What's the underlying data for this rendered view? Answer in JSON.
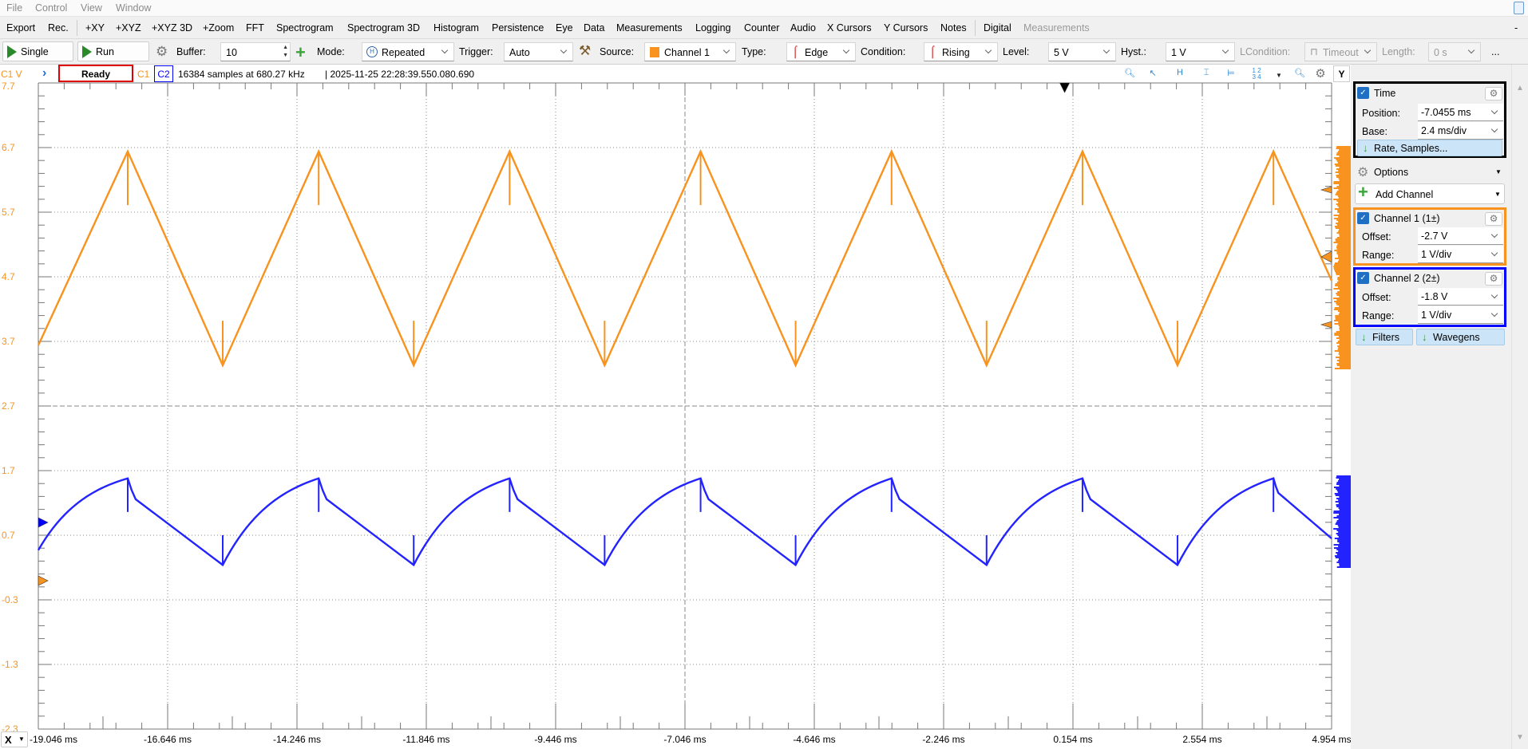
{
  "menu": [
    "File",
    "Control",
    "View",
    "Window"
  ],
  "views": [
    "Export",
    "Rec.",
    "+XY",
    "+XYZ",
    "+XYZ 3D",
    "+Zoom",
    "FFT",
    "Spectrogram",
    "Spectrogram 3D",
    "Histogram",
    "Persistence",
    "Eye",
    "Data",
    "Measurements",
    "Logging",
    "Counter",
    "Audio",
    "X Cursors",
    "Y Cursors",
    "Notes",
    "Digital",
    "Measurements"
  ],
  "minimize": "-",
  "toolbar": {
    "single": "Single",
    "run": "Run",
    "buffer_label": "Buffer:",
    "buffer": "10",
    "mode_label": "Mode:",
    "mode": "Repeated",
    "trigger_label": "Trigger:",
    "trigger": "Auto",
    "source_label": "Source:",
    "source": "Channel 1",
    "type_label": "Type:",
    "type": "Edge",
    "condition_label": "Condition:",
    "condition": "Rising",
    "level_label": "Level:",
    "level": "5 V",
    "hyst_label": "Hyst.:",
    "hyst": "1 V",
    "lcondition_label": "LCondition:",
    "lcondition": "Timeout",
    "length_label": "Length:",
    "length": "0 s",
    "more": "..."
  },
  "status": {
    "axis_unit": "C1 V",
    "state": "Ready",
    "c1": "C1",
    "c2": "C2",
    "info": "16384 samples at 680.27 kHz",
    "timestamp": "| 2025-11-25 22:28:39.550.080.690",
    "y_button": "Y",
    "x_button": "X"
  },
  "colors": {
    "ch1": "#f7931e",
    "ch2": "#2323ff",
    "ready_border": "#e00000",
    "time_border": "#000000"
  },
  "panel": {
    "time": {
      "title": "Time",
      "position_label": "Position:",
      "position": "-7.0455 ms",
      "base_label": "Base:",
      "base": "2.4 ms/div",
      "rate_button": "Rate, Samples..."
    },
    "options": "Options",
    "add_channel": "Add Channel",
    "ch1": {
      "title": "Channel 1 (1±)",
      "offset_label": "Offset:",
      "offset": "-2.7 V",
      "range_label": "Range:",
      "range": "1 V/div"
    },
    "ch2": {
      "title": "Channel 2 (2±)",
      "offset_label": "Offset:",
      "offset": "-1.8 V",
      "range_label": "Range:",
      "range": "1 V/div"
    },
    "filters": "Filters",
    "wavegens": "Wavegens"
  },
  "chart_data": {
    "type": "line",
    "x_range_ms": [
      -19.046,
      4.954
    ],
    "y_range": [
      -2.3,
      7.7
    ],
    "x_ticks": [
      "-19.046 ms",
      "-16.646 ms",
      "-14.246 ms",
      "-11.846 ms",
      "-9.446 ms",
      "-7.046 ms",
      "-4.646 ms",
      "-2.246 ms",
      "0.154 ms",
      "2.554 ms",
      "4.954 ms"
    ],
    "y_ticks": [
      "7.7",
      "6.7",
      "5.7",
      "4.7",
      "3.7",
      "2.7",
      "1.7",
      "0.7",
      "-0.3",
      "-1.3",
      "-2.3"
    ],
    "grid": true,
    "trigger_time_ms": 0,
    "series": [
      {
        "name": "C1",
        "color": "#f7931e",
        "points": [
          [
            -19.046,
            3.64
          ],
          [
            -17.387,
            6.64
          ],
          [
            -15.624,
            3.33
          ],
          [
            -13.843,
            6.64
          ],
          [
            -12.08,
            3.33
          ],
          [
            -10.3,
            6.64
          ],
          [
            -8.537,
            3.33
          ],
          [
            -6.756,
            6.64
          ],
          [
            -4.993,
            3.33
          ],
          [
            -3.212,
            6.64
          ],
          [
            -1.449,
            3.33
          ],
          [
            0.331,
            6.64
          ],
          [
            2.094,
            3.33
          ],
          [
            3.875,
            6.64
          ],
          [
            4.954,
            4.64
          ]
        ],
        "peak_spike_to": 5.81,
        "trough_spike_to": 4.02
      },
      {
        "name": "C2",
        "color": "#2323ff",
        "points": [
          [
            -19.046,
            0.47
          ],
          [
            -17.387,
            1.58
          ],
          [
            -15.624,
            0.24
          ],
          [
            -13.843,
            1.58
          ],
          [
            -12.08,
            0.24
          ],
          [
            -10.3,
            1.58
          ],
          [
            -8.537,
            0.24
          ],
          [
            -6.756,
            1.58
          ],
          [
            -4.993,
            0.24
          ],
          [
            -3.212,
            1.58
          ],
          [
            -1.449,
            0.24
          ],
          [
            0.331,
            1.58
          ],
          [
            2.094,
            0.24
          ],
          [
            3.875,
            1.58
          ],
          [
            4.954,
            0.65
          ]
        ],
        "peak_spike_to": 1.06,
        "trough_spike_to": 0.7
      }
    ]
  }
}
